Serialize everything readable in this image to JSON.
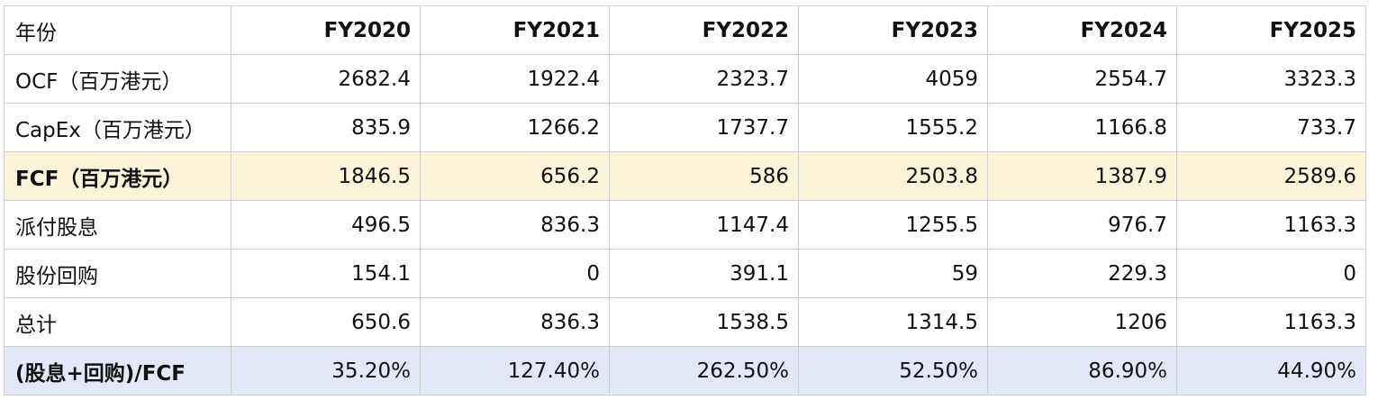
{
  "header": {
    "label": "年份",
    "years": [
      "FY2020",
      "FY2021",
      "FY2022",
      "FY2023",
      "FY2024",
      "FY2025"
    ]
  },
  "rows": [
    {
      "label": "OCF（百万港元）",
      "values": [
        "2682.4",
        "1922.4",
        "2323.7",
        "4059",
        "2554.7",
        "3323.3"
      ]
    },
    {
      "label": "CapEx（百万港元）",
      "values": [
        "835.9",
        "1266.2",
        "1737.7",
        "1555.2",
        "1166.8",
        "733.7"
      ]
    },
    {
      "label": "FCF（百万港元）",
      "values": [
        "1846.5",
        "656.2",
        "586",
        "2503.8",
        "1387.9",
        "2589.6"
      ]
    },
    {
      "label": "派付股息",
      "values": [
        "496.5",
        "836.3",
        "1147.4",
        "1255.5",
        "976.7",
        "1163.3"
      ]
    },
    {
      "label": "股份回购",
      "values": [
        "154.1",
        "0",
        "391.1",
        "59",
        "229.3",
        "0"
      ]
    },
    {
      "label": "总计",
      "values": [
        "650.6",
        "836.3",
        "1538.5",
        "1314.5",
        "1206",
        "1163.3"
      ]
    },
    {
      "label": "(股息+回购)/FCF",
      "values": [
        "35.20%",
        "127.40%",
        "262.50%",
        "52.50%",
        "86.90%",
        "44.90%"
      ]
    }
  ],
  "colors": {
    "fcf_highlight": "#fbf4d9",
    "ratio_highlight": "#e3e8f7",
    "grid": "#cfcfcf"
  }
}
